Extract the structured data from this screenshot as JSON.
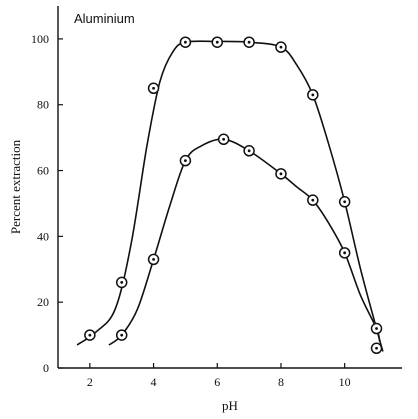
{
  "chart_data": {
    "type": "scatter",
    "title": "",
    "annotation": "Aluminium",
    "xlabel": "pH",
    "ylabel": "Percent extraction",
    "xlim": [
      1,
      11.8
    ],
    "ylim": [
      0,
      110
    ],
    "xticks": [
      2,
      4,
      6,
      8,
      10
    ],
    "yticks": [
      0,
      20,
      40,
      60,
      80,
      100
    ],
    "grid": false,
    "series": [
      {
        "points": [
          [
            2,
            10
          ],
          [
            3,
            26
          ],
          [
            4,
            85
          ],
          [
            5,
            99
          ],
          [
            6,
            99
          ],
          [
            7,
            99
          ],
          [
            8,
            97.5
          ],
          [
            9,
            83
          ],
          [
            10,
            50.5
          ],
          [
            11,
            6
          ]
        ],
        "curve": [
          [
            1.6,
            7
          ],
          [
            2.2,
            11
          ],
          [
            2.8,
            18
          ],
          [
            3.3,
            38
          ],
          [
            3.8,
            68
          ],
          [
            4.2,
            87
          ],
          [
            4.6,
            96
          ],
          [
            5,
            99
          ],
          [
            6,
            99.2
          ],
          [
            7,
            99
          ],
          [
            8,
            97.5
          ],
          [
            8.5,
            92
          ],
          [
            9,
            83
          ],
          [
            9.5,
            68
          ],
          [
            10,
            50.5
          ],
          [
            10.5,
            30
          ],
          [
            11,
            12
          ],
          [
            11.2,
            5
          ]
        ]
      },
      {
        "points": [
          [
            3,
            10
          ],
          [
            4,
            33
          ],
          [
            5,
            63
          ],
          [
            6.2,
            69.5
          ],
          [
            7,
            66
          ],
          [
            8,
            59
          ],
          [
            9,
            51
          ],
          [
            10,
            35
          ],
          [
            11,
            12
          ]
        ],
        "curve": [
          [
            2.6,
            7
          ],
          [
            3,
            10
          ],
          [
            3.5,
            18
          ],
          [
            4,
            33
          ],
          [
            4.5,
            49
          ],
          [
            5,
            63
          ],
          [
            5.5,
            67.5
          ],
          [
            6.2,
            69.5
          ],
          [
            7,
            66
          ],
          [
            8,
            59
          ],
          [
            8.5,
            55
          ],
          [
            9,
            51
          ],
          [
            9.5,
            44
          ],
          [
            10,
            35
          ],
          [
            10.5,
            22
          ],
          [
            11,
            12
          ],
          [
            11.1,
            8
          ]
        ]
      }
    ]
  }
}
